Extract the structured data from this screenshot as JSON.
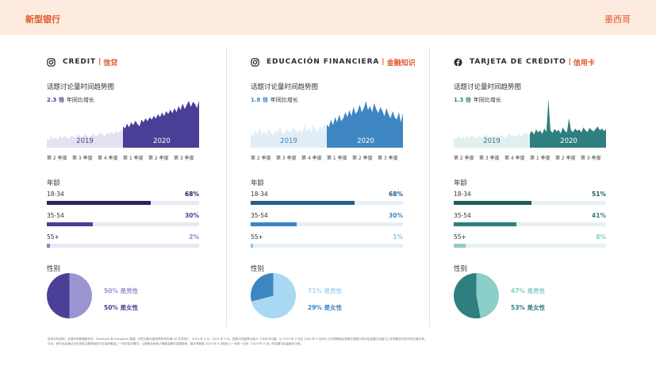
{
  "header": {
    "brand": "新型银行",
    "region": "墨西哥"
  },
  "common": {
    "trend_title": "话题讨论量时间趋势图",
    "growth_suffix": "年同比增长",
    "year_a": "2019",
    "year_b": "2020",
    "quarters": [
      "第 2 季度",
      "第 3 季度",
      "第 4 季度",
      "第 1 季度",
      "第 2 季度",
      "第 3 季度"
    ],
    "age_title": "年龄",
    "gender_title": "性别",
    "male_suffix": "是男性",
    "female_suffix": "是女性"
  },
  "columns": [
    {
      "icon": "instagram-icon",
      "name": "CREDIT",
      "sep": "|",
      "name_local": "信贷",
      "growth": "2.3 倍",
      "color": "#4a3f96",
      "light": "#e3e2f0",
      "track": "#e9e9f3",
      "ages": [
        {
          "label": "18-34",
          "pct": "68%",
          "value": 68,
          "color": "#2b2463"
        },
        {
          "label": "35-54",
          "pct": "30%",
          "value": 30,
          "color": "#4a3f96"
        },
        {
          "label": "55+",
          "pct": "2%",
          "value": 2,
          "color": "#8c84c8"
        }
      ],
      "male_pct": "50%",
      "female_pct": "50%",
      "male": 50,
      "male_color": "#9b95d0",
      "female_color": "#4a3f96",
      "trend_2019": [
        0.18,
        0.15,
        0.22,
        0.17,
        0.2,
        0.16,
        0.23,
        0.19,
        0.24,
        0.2,
        0.17,
        0.25,
        0.21,
        0.19,
        0.26,
        0.22,
        0.2,
        0.27,
        0.23,
        0.21,
        0.24,
        0.28,
        0.22,
        0.26,
        0.3,
        0.25,
        0.23,
        0.29,
        0.27,
        0.31,
        0.26,
        0.33,
        0.29,
        0.36,
        0.3
      ],
      "trend_2020": [
        0.42,
        0.38,
        0.47,
        0.4,
        0.5,
        0.44,
        0.53,
        0.47,
        0.42,
        0.55,
        0.5,
        0.58,
        0.52,
        0.6,
        0.55,
        0.63,
        0.57,
        0.66,
        0.6,
        0.69,
        0.62,
        0.72,
        0.66,
        0.75,
        0.68,
        0.78,
        0.7,
        0.82,
        0.74,
        0.87,
        0.76,
        0.84,
        0.92,
        0.8,
        0.9,
        0.86,
        0.78,
        0.93
      ]
    },
    {
      "icon": "instagram-icon",
      "name": "EDUCACIÓN FINANCIERA",
      "sep": "|",
      "name_local": "金融知识",
      "growth": "1.8 倍",
      "color": "#3d86c2",
      "light": "#e2eef7",
      "track": "#e7eff7",
      "ages": [
        {
          "label": "18-34",
          "pct": "68%",
          "value": 68,
          "color": "#245e8f"
        },
        {
          "label": "35-54",
          "pct": "30%",
          "value": 30,
          "color": "#3d86c2"
        },
        {
          "label": "55+",
          "pct": "1%",
          "value": 1,
          "color": "#8cc4e6"
        }
      ],
      "male_pct": "71%",
      "female_pct": "29%",
      "male": 71,
      "male_color": "#a8d8f2",
      "female_color": "#3d86c2",
      "trend_2019": [
        0.3,
        0.22,
        0.35,
        0.25,
        0.4,
        0.28,
        0.33,
        0.26,
        0.38,
        0.3,
        0.24,
        0.36,
        0.28,
        0.42,
        0.3,
        0.26,
        0.38,
        0.32,
        0.29,
        0.41,
        0.34,
        0.3,
        0.36,
        0.28,
        0.44,
        0.33,
        0.38,
        0.3,
        0.47,
        0.36,
        0.32,
        0.42,
        0.35,
        0.45,
        0.4
      ],
      "trend_2020": [
        0.46,
        0.4,
        0.55,
        0.44,
        0.6,
        0.5,
        0.65,
        0.52,
        0.58,
        0.7,
        0.6,
        0.74,
        0.62,
        0.8,
        0.66,
        0.72,
        0.85,
        0.7,
        0.78,
        0.92,
        0.74,
        0.82,
        0.7,
        0.88,
        0.76,
        0.68,
        0.8,
        0.72,
        0.62,
        0.78,
        0.66,
        0.58,
        0.72,
        0.6,
        0.55,
        0.7,
        0.5,
        0.68
      ]
    },
    {
      "icon": "facebook-icon",
      "name": "TARJETA DE CRÉDITO",
      "sep": "|",
      "name_local": "信用卡",
      "growth": "1.3 倍",
      "color": "#2f7f80",
      "light": "#e2efef",
      "track": "#e6f1f0",
      "ages": [
        {
          "label": "18-34",
          "pct": "51%",
          "value": 51,
          "color": "#1f5d5e"
        },
        {
          "label": "35-54",
          "pct": "41%",
          "value": 41,
          "color": "#2f7f80"
        },
        {
          "label": "55+",
          "pct": "8%",
          "value": 8,
          "color": "#8ccfc9"
        }
      ],
      "male_pct": "47%",
      "female_pct": "53%",
      "male": 47,
      "male_color": "#8ccfc9",
      "female_color": "#2f7f80",
      "trend_2019": [
        0.2,
        0.16,
        0.24,
        0.18,
        0.21,
        0.17,
        0.23,
        0.19,
        0.26,
        0.2,
        0.18,
        0.24,
        0.21,
        0.19,
        0.27,
        0.22,
        0.2,
        0.25,
        0.21,
        0.23,
        0.19,
        0.26,
        0.22,
        0.2,
        0.24,
        0.28,
        0.22,
        0.25,
        0.21,
        0.27,
        0.23,
        0.26,
        0.3,
        0.27,
        0.25
      ],
      "trend_2020": [
        0.28,
        0.33,
        0.26,
        0.36,
        0.3,
        0.34,
        0.27,
        0.38,
        0.31,
        0.96,
        0.34,
        0.29,
        0.37,
        0.32,
        0.35,
        0.28,
        0.4,
        0.33,
        0.3,
        0.58,
        0.34,
        0.31,
        0.38,
        0.33,
        0.36,
        0.3,
        0.4,
        0.34,
        0.31,
        0.39,
        0.35,
        0.32,
        0.37,
        0.42,
        0.34,
        0.38,
        0.33,
        0.36
      ]
    }
  ],
  "footnote_lines": [
    "除非另有说明，否则所有数据都来自：Facebook 和 Instagram 数据。研究对象为墨西哥所有年满 18 岁的用户，2019 年 4 月 - 2020 年 9 月。图表中的趋势为每 6 个月的平均值，以 2019 年 3 月至 2020 年 9 月间与上年同期相比的增长倍数计算对应话题讨论量与上年同期变化的年同比增长率。",
    "平台。我们也会通过分析其他主题网络的讨论量来衡量上一年的变化情况，以便更全面地了解各话题的发展趋势。增长率数据 2020 年 9 月相对上一年同一月份（2019 年 9 月）的话题讨论量增长比例。"
  ]
}
